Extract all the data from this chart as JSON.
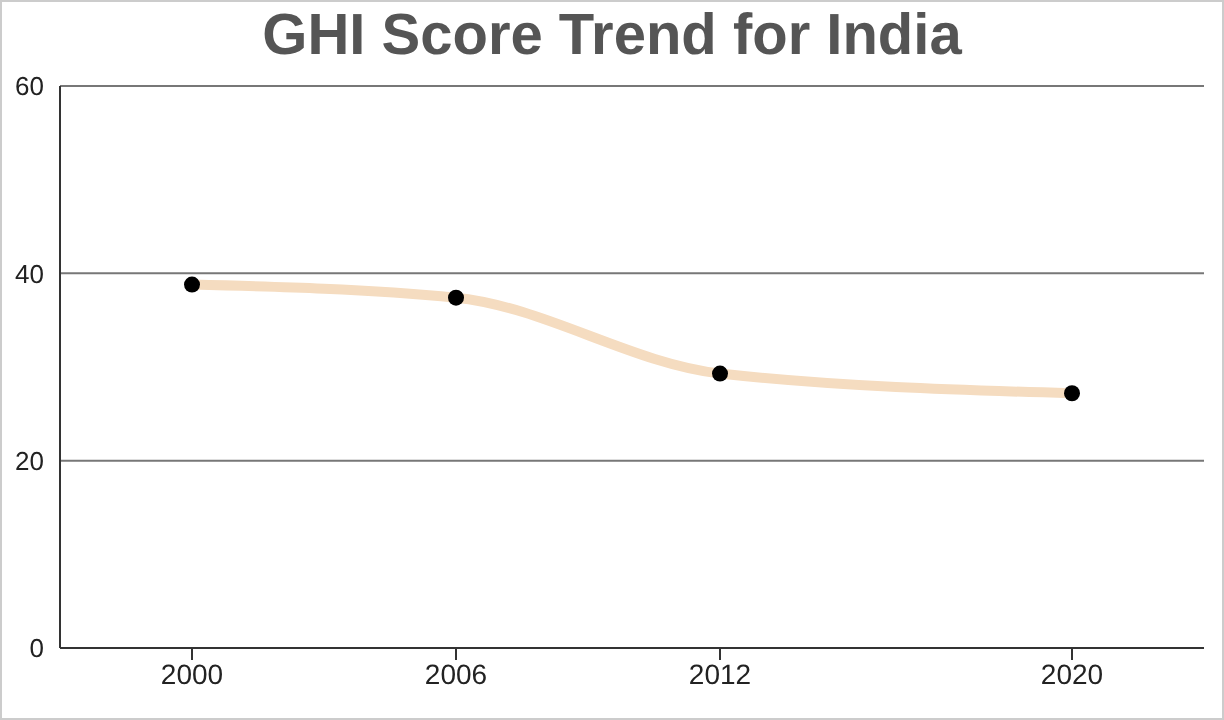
{
  "chart_data": {
    "type": "line",
    "title": "GHI Score Trend for India",
    "x": [
      2000,
      2006,
      2012,
      2020
    ],
    "series": [
      {
        "color": "#f5dcc0",
        "colors": [
          "#000000",
          "#000000",
          "#000000",
          "#000000"
        ],
        "values": [
          38.8,
          37.4,
          29.3,
          27.2
        ]
      }
    ],
    "xlim": [
      1997,
      2023
    ],
    "xticks": [
      2000,
      2006,
      2012,
      2020
    ],
    "ylim": [
      0,
      60
    ],
    "yticks": [
      0,
      20,
      40,
      60
    ],
    "grid": "y",
    "marker": "circle"
  }
}
